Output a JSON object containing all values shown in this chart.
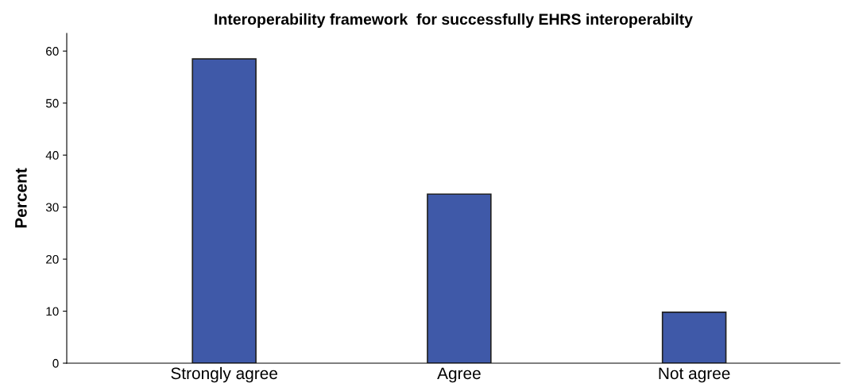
{
  "chart_data": {
    "type": "bar",
    "title": "Interoperability framework  for successfully EHRS interoperabilty",
    "ylabel": "Percent",
    "categories": [
      "Strongly agree",
      "Agree",
      "Not agree"
    ],
    "values": [
      58.5,
      32.5,
      9.8
    ],
    "color": "#3f59a8",
    "ylim": [
      0,
      63.4
    ],
    "yticks": [
      0,
      10,
      20,
      30,
      40,
      50,
      60
    ],
    "grid": false
  }
}
